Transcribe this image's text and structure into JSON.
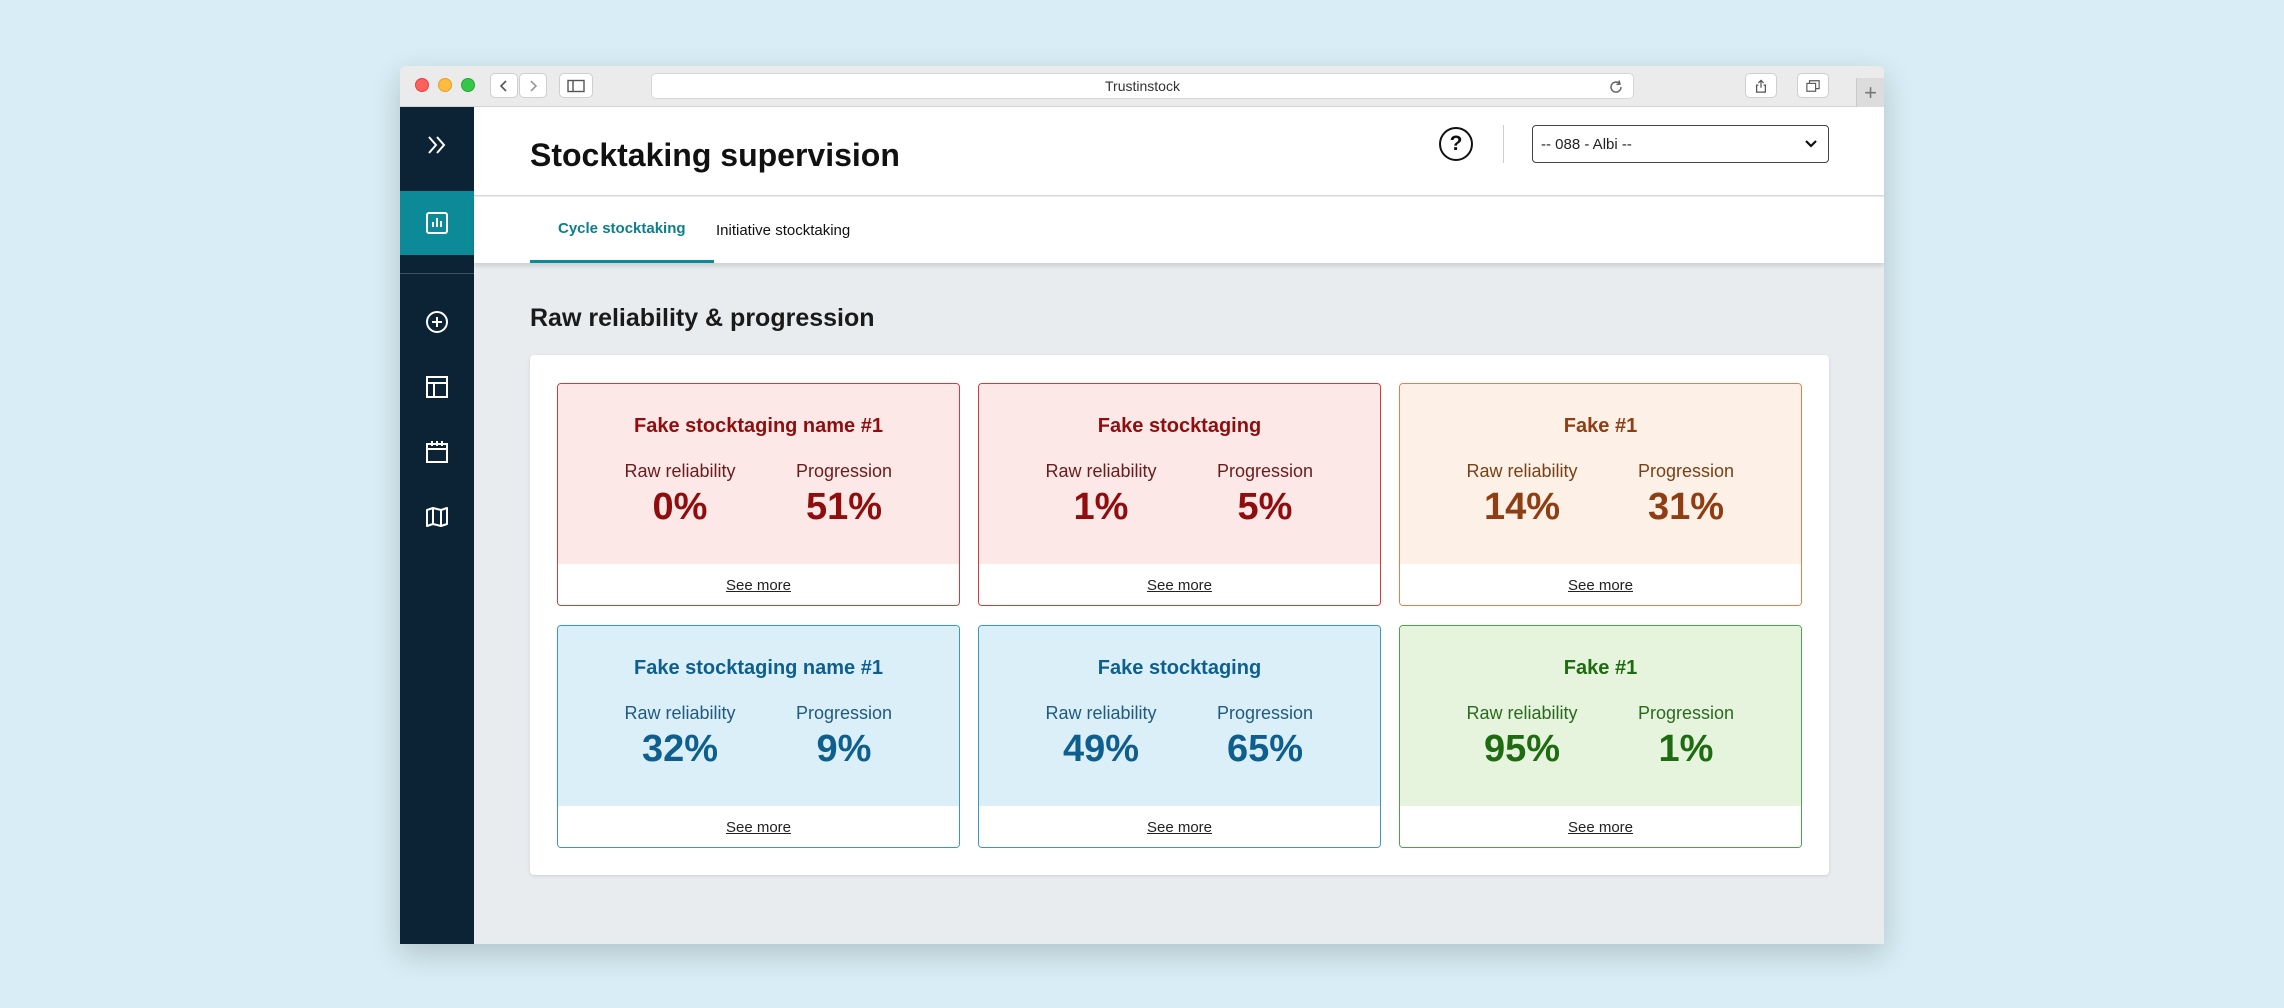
{
  "browser": {
    "url_title": "Trustinstock",
    "new_tab_symbol": "+"
  },
  "sidebar": {
    "items": [
      {
        "icon": "double-chevron-right-icon"
      },
      {
        "icon": "bar-chart-icon",
        "active": true
      },
      {
        "icon": "plus-circle-icon"
      },
      {
        "icon": "table-layout-icon"
      },
      {
        "icon": "calendar-icon"
      },
      {
        "icon": "book-icon"
      }
    ]
  },
  "header": {
    "title": "Stocktaking supervision",
    "help_symbol": "?",
    "store_select": "-- 088 - Albi --"
  },
  "tabs": [
    {
      "label": "Cycle stocktaking",
      "active": true
    },
    {
      "label": "Initiative stocktaking",
      "active": false
    }
  ],
  "section": {
    "title": "Raw reliability & progression"
  },
  "cards": [
    {
      "title": "Fake stocktaging name #1",
      "label_a": "Raw reliability",
      "value_a": "0%",
      "label_b": "Progression",
      "value_b": "51%",
      "link": "See more",
      "tone": "red"
    },
    {
      "title": "Fake stocktaging",
      "label_a": "Raw reliability",
      "value_a": "1%",
      "label_b": "Progression",
      "value_b": "5%",
      "link": "See more",
      "tone": "red"
    },
    {
      "title": "Fake #1",
      "label_a": "Raw reliability",
      "value_a": "14%",
      "label_b": "Progression",
      "value_b": "31%",
      "link": "See more",
      "tone": "orange"
    },
    {
      "title": "Fake stocktaging name #1",
      "label_a": "Raw reliability",
      "value_a": "32%",
      "label_b": "Progression",
      "value_b": "9%",
      "link": "See more",
      "tone": "blue"
    },
    {
      "title": "Fake stocktaging",
      "label_a": "Raw reliability",
      "value_a": "49%",
      "label_b": "Progression",
      "value_b": "65%",
      "link": "See more",
      "tone": "blue"
    },
    {
      "title": "Fake #1",
      "label_a": "Raw reliability",
      "value_a": "95%",
      "label_b": "Progression",
      "value_b": "1%",
      "link": "See more",
      "tone": "green"
    }
  ],
  "colors": {
    "sidebar_bg": "#0b2335",
    "accent": "#0c8a97",
    "red": "#8f0d0d",
    "orange": "#8f3d12",
    "blue": "#0f5f8e",
    "green": "#1e6b11"
  }
}
